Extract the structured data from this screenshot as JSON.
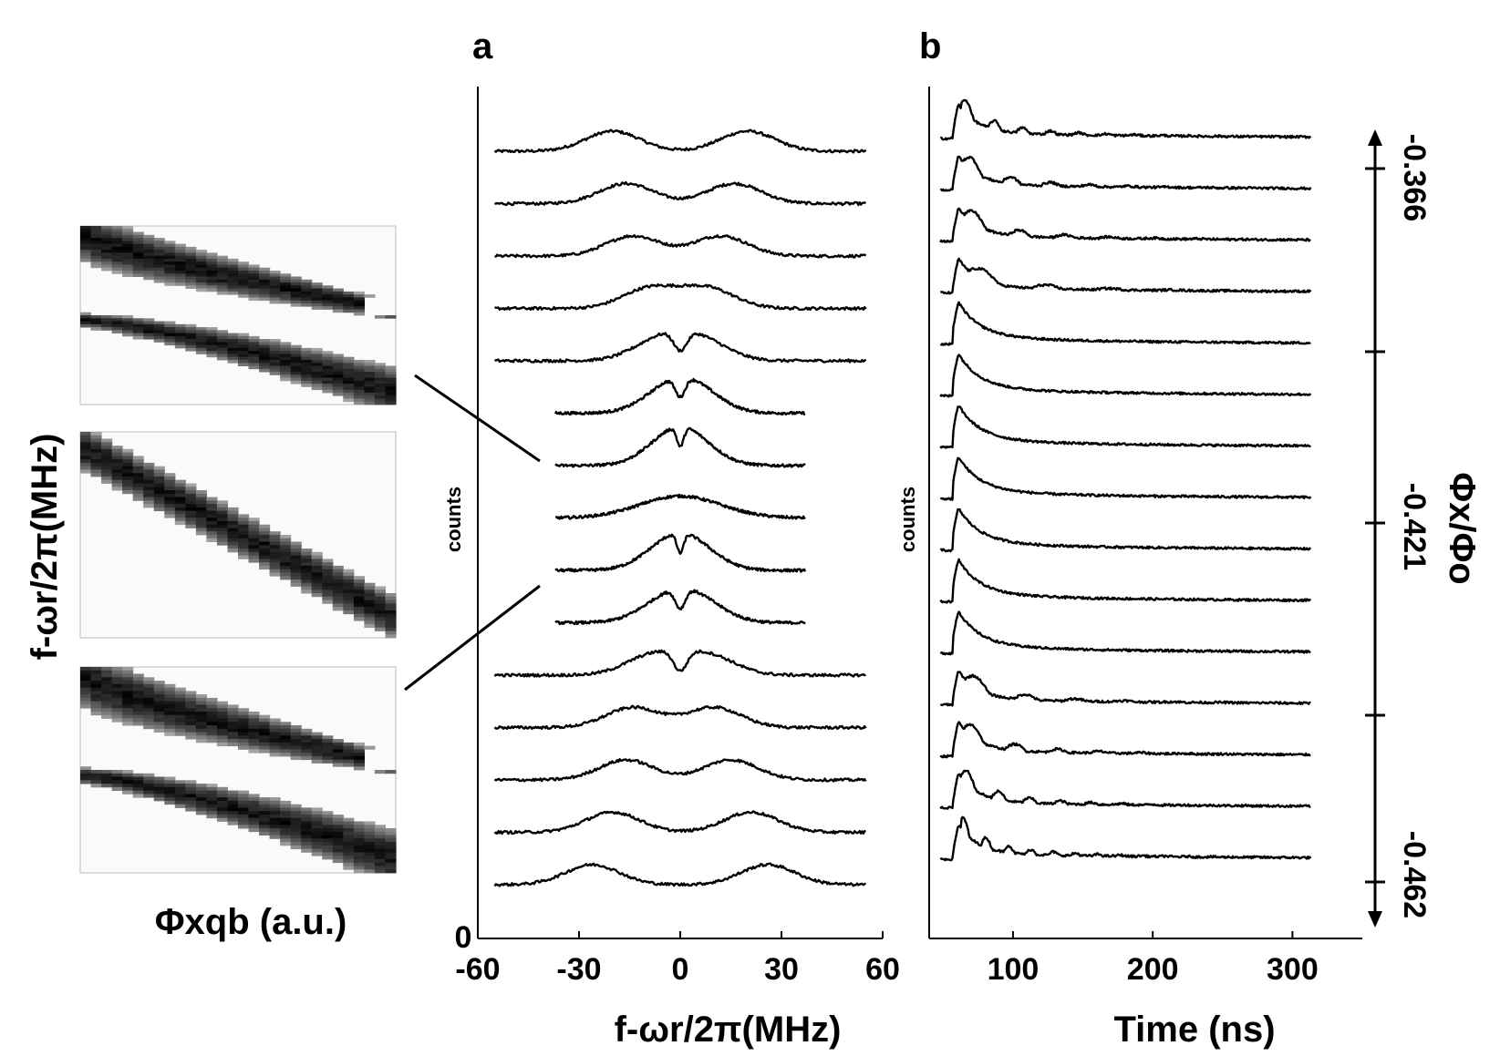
{
  "inset": {
    "ylabel": "f-ωr/2π(MHz)",
    "xlabel": "Φxqb (a.u.)",
    "panels": [
      {
        "type": "avoided-crossing"
      },
      {
        "type": "single-line"
      },
      {
        "type": "avoided-crossing"
      }
    ]
  },
  "chart_data": [
    {
      "panel": "a",
      "type": "line",
      "xlabel": "f-ωr/2π(MHz)",
      "ylabel": "counts",
      "xlim": [
        -60,
        60
      ],
      "xticks": [
        "-60",
        "-30",
        "0",
        "30",
        "60"
      ],
      "yticks": [
        "0"
      ],
      "series": [
        {
          "x_range": [
            -55,
            55
          ],
          "peaks": [
            -20,
            20
          ],
          "dip_width": 0
        },
        {
          "x_range": [
            -55,
            55
          ],
          "peaks": [
            -16,
            16
          ],
          "dip_width": 0
        },
        {
          "x_range": [
            -55,
            55
          ],
          "peaks": [
            -14,
            12
          ],
          "dip_width": 0
        },
        {
          "x_range": [
            -55,
            55
          ],
          "peaks": [
            -9,
            8
          ],
          "dip_width": 0
        },
        {
          "x_range": [
            -55,
            55
          ],
          "peaks": [
            -6,
            6
          ],
          "dip_width": 2
        },
        {
          "x_range": [
            -37,
            37
          ],
          "peaks": [
            -3,
            4
          ],
          "dip_width": 1.5
        },
        {
          "x_range": [
            -37,
            37
          ],
          "peaks": [
            -2,
            2
          ],
          "dip_width": 1
        },
        {
          "x_range": [
            -37,
            37
          ],
          "peaks": [
            0
          ],
          "dip_width": 0
        },
        {
          "x_range": [
            -37,
            37
          ],
          "peaks": [
            -3,
            3
          ],
          "dip_width": 1
        },
        {
          "x_range": [
            -37,
            37
          ],
          "peaks": [
            -4,
            5
          ],
          "dip_width": 1.5
        },
        {
          "x_range": [
            -55,
            55
          ],
          "peaks": [
            -8,
            8
          ],
          "dip_width": 2
        },
        {
          "x_range": [
            -55,
            55
          ],
          "peaks": [
            -14,
            10
          ],
          "dip_width": 0
        },
        {
          "x_range": [
            -55,
            55
          ],
          "peaks": [
            -16,
            15
          ],
          "dip_width": 0
        },
        {
          "x_range": [
            -55,
            55
          ],
          "peaks": [
            -20,
            21
          ],
          "dip_width": 0
        },
        {
          "x_range": [
            -55,
            55
          ],
          "peaks": [
            -26,
            26
          ],
          "dip_width": 0
        }
      ]
    },
    {
      "panel": "b",
      "type": "line",
      "xlabel": "Time (ns)",
      "ylabel": "counts",
      "xlim": [
        40,
        350
      ],
      "xticks": [
        "100",
        "200",
        "300"
      ],
      "x_range": [
        48,
        313
      ],
      "right_axis": {
        "label": "Φx/Φo",
        "ticks": [
          "-0.366",
          "-0.421",
          "-0.462"
        ]
      },
      "series": [
        {
          "oscillation_period_ns": 20
        },
        {
          "oscillation_period_ns": 28
        },
        {
          "oscillation_period_ns": 32
        },
        {
          "oscillation_period_ns": 45
        },
        {
          "oscillation_period_ns": 0
        },
        {
          "oscillation_period_ns": 0
        },
        {
          "oscillation_period_ns": 0
        },
        {
          "oscillation_period_ns": 0
        },
        {
          "oscillation_period_ns": 0
        },
        {
          "oscillation_period_ns": 0
        },
        {
          "oscillation_period_ns": 0
        },
        {
          "oscillation_period_ns": 35
        },
        {
          "oscillation_period_ns": 30
        },
        {
          "oscillation_period_ns": 22
        },
        {
          "oscillation_period_ns": 16
        }
      ]
    }
  ],
  "labels": {
    "a": "a",
    "b": "b"
  }
}
